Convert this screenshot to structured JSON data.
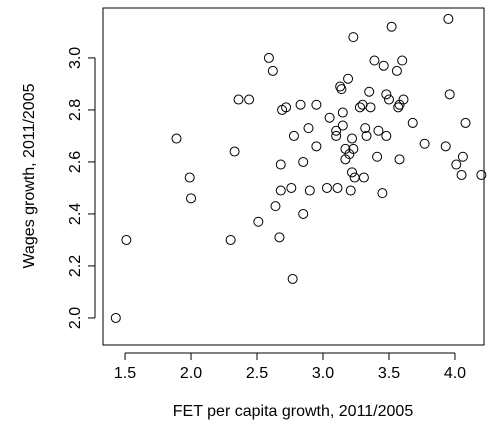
{
  "chart_data": {
    "type": "scatter",
    "x_label": "FET per capita growth, 2011/2005",
    "y_label": "Wages growth, 2011/2005",
    "xlim": [
      1.333,
      4.22
    ],
    "ylim": [
      1.896,
      3.192
    ],
    "xticks": [
      1.5,
      {
        "value": 2,
        "label": "2.0"
      },
      2.5,
      {
        "value": 3,
        "label": "3.0"
      },
      3.5,
      {
        "value": 4,
        "label": "4.0"
      }
    ],
    "yticks": [
      {
        "value": 2,
        "label": "2.0"
      },
      2.2,
      2.4,
      2.6,
      2.8,
      {
        "value": 3,
        "label": "3.0"
      }
    ],
    "color": "#000000",
    "x": [
      1.43,
      1.51,
      1.89,
      1.99,
      2.0,
      2.3,
      2.33,
      2.36,
      2.44,
      2.51,
      2.59,
      2.62,
      2.64,
      2.67,
      2.68,
      2.68,
      2.69,
      2.72,
      2.76,
      2.77,
      2.78,
      2.83,
      2.85,
      2.85,
      2.89,
      2.9,
      2.95,
      2.95,
      3.03,
      3.05,
      3.1,
      3.1,
      3.11,
      3.13,
      3.14,
      3.15,
      3.15,
      3.17,
      3.17,
      3.19,
      3.2,
      3.21,
      3.22,
      3.22,
      3.23,
      3.23,
      3.24,
      3.28,
      3.3,
      3.31,
      3.32,
      3.33,
      3.35,
      3.36,
      3.39,
      3.41,
      3.42,
      3.45,
      3.46,
      3.48,
      3.48,
      3.5,
      3.52,
      3.56,
      3.57,
      3.58,
      3.58,
      3.6,
      3.61,
      3.68,
      3.77,
      3.93,
      3.95,
      3.96,
      4.01,
      4.05,
      4.06,
      4.08,
      4.2
    ],
    "y": [
      2.0,
      2.3,
      2.69,
      2.54,
      2.46,
      2.3,
      2.64,
      2.84,
      2.84,
      2.37,
      3.0,
      2.95,
      2.43,
      2.31,
      2.49,
      2.59,
      2.8,
      2.81,
      2.5,
      2.15,
      2.7,
      2.82,
      2.6,
      2.4,
      2.73,
      2.49,
      2.82,
      2.66,
      2.5,
      2.77,
      2.72,
      2.7,
      2.5,
      2.89,
      2.88,
      2.79,
      2.74,
      2.65,
      2.61,
      2.92,
      2.63,
      2.49,
      2.69,
      2.56,
      3.08,
      2.65,
      2.54,
      2.81,
      2.82,
      2.54,
      2.73,
      2.7,
      2.87,
      2.81,
      2.99,
      2.62,
      2.72,
      2.48,
      2.97,
      2.86,
      2.7,
      2.84,
      3.12,
      2.95,
      2.81,
      2.61,
      2.82,
      2.99,
      2.84,
      2.75,
      2.67,
      2.66,
      3.15,
      2.86,
      2.59,
      2.55,
      2.62,
      2.75,
      2.55
    ]
  }
}
